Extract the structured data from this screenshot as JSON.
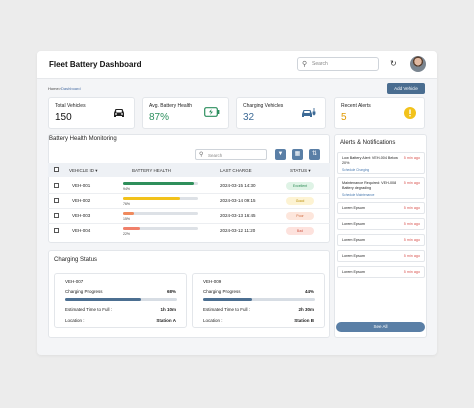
{
  "header": {
    "title": "Fleet Battery Dashboard",
    "search_placeholder": "Search",
    "refresh_icon": "refresh-icon",
    "avatar_icon": "avatar"
  },
  "breadcrumb": {
    "home": "Home",
    "separator": ">",
    "current": "Dashboard"
  },
  "add_vehicle_label": "Add Vehicle",
  "kpis": [
    {
      "label": "Total Vehicles",
      "value": "150",
      "icon": "car-icon"
    },
    {
      "label": "Avg. Battery Health",
      "value": "87%",
      "icon": "battery-icon"
    },
    {
      "label": "Charging Vehicles",
      "value": "32",
      "icon": "ev-charging-icon"
    },
    {
      "label": "Recent Alerts",
      "value": "5",
      "icon": "warning-icon"
    }
  ],
  "battery_table": {
    "title": "Battery Health Monitoring",
    "search_placeholder": "Search",
    "columns": [
      "VEHICLE ID",
      "BATTERY HEALTH",
      "LAST CHARGE",
      "STATUS"
    ],
    "rows": [
      {
        "id": "VEH-001",
        "health": 94,
        "health_label": "94%",
        "last_charge": "2024-03-15 14:30",
        "status": "Excellent",
        "bar_color": "#2f8f5b",
        "badge_bg": "#dff3e6",
        "badge_fg": "#2d8a55"
      },
      {
        "id": "VEH-002",
        "health": 76,
        "health_label": "76%",
        "last_charge": "2024-03-14 09:15",
        "status": "Good",
        "bar_color": "#f2c21b",
        "badge_bg": "#fdf3d3",
        "badge_fg": "#b98a00"
      },
      {
        "id": "VEH-003",
        "health": 15,
        "health_label": "15%",
        "last_charge": "2024-03-13 16:45",
        "status": "Poor",
        "bar_color": "#f08a5d",
        "badge_bg": "#fde6dc",
        "badge_fg": "#d06a3d"
      },
      {
        "id": "VEH-004",
        "health": 22,
        "health_label": "22%",
        "last_charge": "2024-03-12 11:20",
        "status": "Bad",
        "bar_color": "#f0806a",
        "badge_bg": "#fde2dd",
        "badge_fg": "#d05a48"
      }
    ]
  },
  "charging": {
    "title": "Charging Status",
    "progress_label": "Charging Progress",
    "est_label": "Estimated Time to Full :",
    "location_label": "Location :",
    "vehicles": [
      {
        "id": "VEH-007",
        "progress": 68,
        "progress_label": "68%",
        "est": "1h 10m",
        "location": "Station A"
      },
      {
        "id": "VEH-009",
        "progress": 44,
        "progress_label": "44%",
        "est": "2h 30m",
        "location": "Station B"
      }
    ]
  },
  "alerts": {
    "title": "Alerts & Notifications",
    "items": [
      {
        "text": "Low Battery Alert: VEH-004 Below 20%",
        "sub": "Schedule Charging",
        "time": "5 min ago"
      },
      {
        "text": "Maintenance Required: VEH-008 Battery degrading",
        "sub": "Schedule Maintenance",
        "time": "5 min ago"
      },
      {
        "text": "Lorem Epsum",
        "sub": "",
        "time": "5 min ago"
      },
      {
        "text": "Lorem Epsum",
        "sub": "",
        "time": "5 min ago"
      },
      {
        "text": "Lorem Epsum",
        "sub": "",
        "time": "5 min ago"
      },
      {
        "text": "Lorem Epsum",
        "sub": "",
        "time": "5 min ago"
      },
      {
        "text": "Lorem Epsum",
        "sub": "",
        "time": "5 min ago"
      }
    ],
    "see_all": "See All"
  },
  "colors": {
    "primary": "#4a6d90",
    "accent_green": "#2d8f5e",
    "accent_blue": "#3d6a96",
    "accent_amber": "#f2c21b",
    "alert_red": "#d9534f"
  }
}
